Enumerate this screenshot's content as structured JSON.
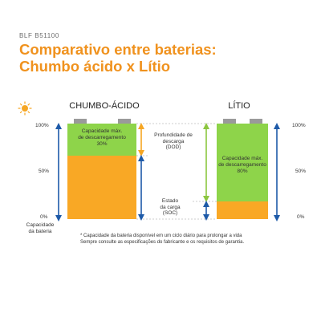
{
  "header": {
    "code": "BLF B51100",
    "title_line1": "Comparativo entre baterias:",
    "title_line2": "Chumbo ácido x Lítio"
  },
  "batteries": {
    "lead_acid": {
      "name": "CHUMBO-ÁCIDO",
      "max_discharge_label_line1": "Capacidade máx.",
      "max_discharge_label_line2": "de descarregamento",
      "max_discharge_value": "30%",
      "max_discharge_fraction": 0.3
    },
    "lithium": {
      "name": "LÍTIO",
      "max_discharge_label_line1": "Capacidade máx.",
      "max_discharge_label_line2": "de descarregamento",
      "max_discharge_value": "80%",
      "max_discharge_fraction": 0.8
    }
  },
  "axis": {
    "tick_100": "100%",
    "tick_50": "50%",
    "tick_0": "0%",
    "capacity_label_line1": "Capacidade",
    "capacity_label_line2": "da bateria"
  },
  "middle_labels": {
    "dod_line1": "Profundidade de",
    "dod_line2": "descarga",
    "dod_line3": "(DOD)",
    "soc_line1": "Estado",
    "soc_line2": "da carga",
    "soc_line3": "(SOC)"
  },
  "footnote": {
    "line1": "* Capacidade da bateria disponível em um ciclo diário para prolongar a vida",
    "line2": "Sempre consulte as especificações do fabricante e os requisitos de garantia."
  },
  "colors": {
    "accent_orange": "#f0921e",
    "battery_orange": "#f9a825",
    "battery_green": "#8ed44a",
    "terminal_gray": "#9a9a9a",
    "arrow_blue": "#1e5aa8",
    "arrow_orange": "#f6a623",
    "arrow_green": "#8cc63f"
  },
  "icons": {
    "sun": "sun-icon"
  }
}
